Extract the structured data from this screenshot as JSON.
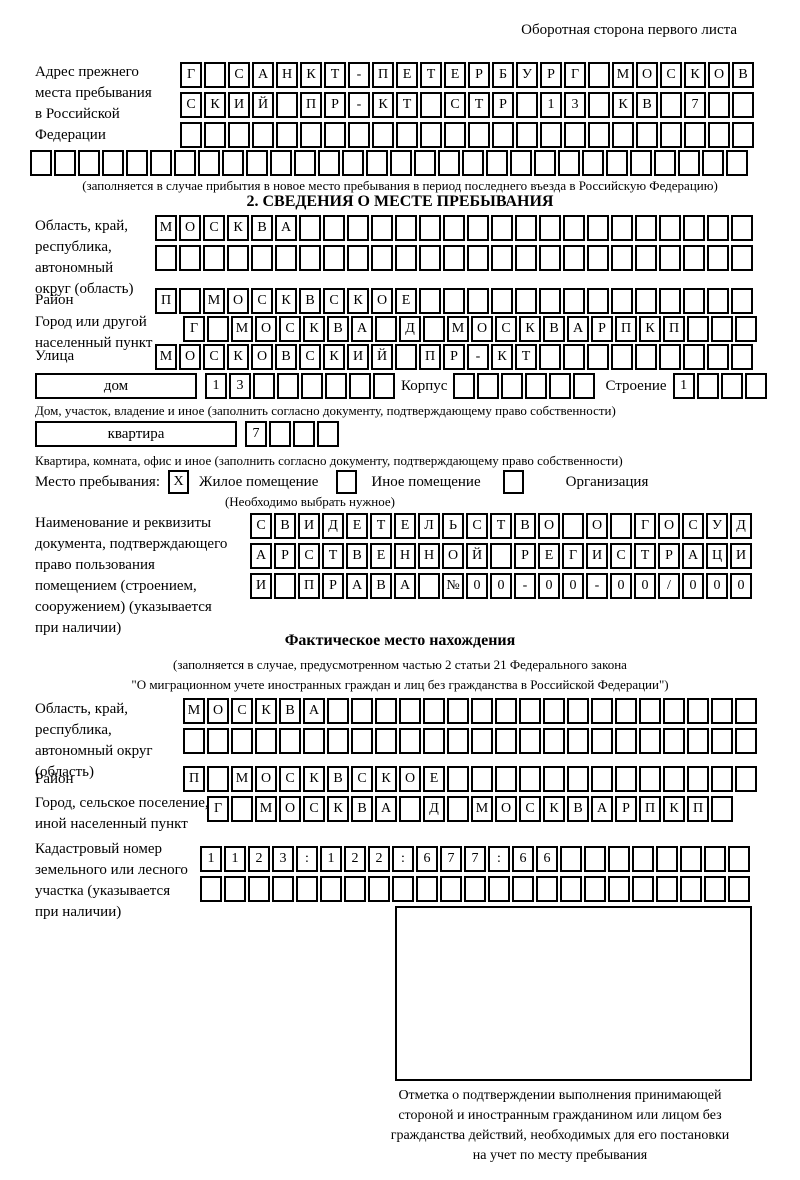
{
  "header": {
    "title": "Оборотная сторона первого листа"
  },
  "prev_address": {
    "label": "Адрес прежнего\nместа пребывания\nв Российской\nФедерации",
    "row1": {
      "text": "Г САНКТ-ПЕТЕРБУРГ МОСКОВ",
      "len": 24
    },
    "row2": {
      "text": "СКИЙ ПР-КТ СТР 13 КВ 7",
      "len": 24
    },
    "row3": {
      "text": "",
      "len": 24
    },
    "row4": {
      "text": "",
      "len": 30
    },
    "note": "(заполняется в случае прибытия в новое место пребывания в период последнего въезда в Российскую Федерацию)"
  },
  "section2": {
    "title": "2. СВЕДЕНИЯ О МЕСТЕ ПРЕБЫВАНИЯ",
    "region": {
      "label": "Область, край,\nреспублика,\nавтономный\nокруг (область)",
      "row1": {
        "text": "МОСКВА",
        "len": 25
      },
      "row2": {
        "text": "",
        "len": 25
      }
    },
    "district": {
      "label": "Район",
      "row": {
        "text": "П МОСКВСКОЕ",
        "len": 25
      }
    },
    "city": {
      "label": "Город или другой\nнаселенный пункт",
      "row": {
        "text": "Г МОСКВА Д МОСКВАРПКП",
        "len": 24
      }
    },
    "street": {
      "label": "Улица",
      "row": {
        "text": "МОСКОВСКИЙ ПР-КТ",
        "len": 25
      }
    },
    "house": {
      "box_label": "дом",
      "cells": {
        "text": "13",
        "len": 8
      },
      "korpus_label": "Корпус",
      "korpus_cells": {
        "text": "",
        "len": 6
      },
      "stroenie_label": "Строение",
      "stroenie_cells": {
        "text": "1",
        "len": 4
      }
    },
    "house_note": "Дом, участок, владение и иное (заполнить согласно документу, подтверждающему право собственности)",
    "apartment": {
      "box_label": "квартира",
      "cells": {
        "text": "7",
        "len": 4
      }
    },
    "apartment_note": "Квартира, комната, офис и иное (заполнить согласно документу, подтверждающему право собственности)",
    "stay_type": {
      "label": "Место пребывания:",
      "option1": "Жилое помещение",
      "option1_checked": "X",
      "option2": "Иное помещение",
      "option2_checked": "",
      "option3": "Организация",
      "option3_checked": "",
      "note": "(Необходимо выбрать нужное)"
    },
    "document": {
      "label": "Наименование и реквизиты\nдокумента, подтверждающего\nправо пользования\nпомещением (строением,\nсооружением) (указывается\nпри наличии)",
      "row1": {
        "text": "СВИДЕТЕЛЬСТВО О ГОСУД",
        "len": 21
      },
      "row2": {
        "text": "АРСТВЕННОЙ РЕГИСТРАЦИ",
        "len": 21
      },
      "row3": {
        "text": "И ПРАВА №00-00-00/000",
        "len": 21
      }
    }
  },
  "actual_location": {
    "title": "Фактическое место нахождения",
    "note1": "(заполняется в случае, предусмотренном частью 2 статьи 21 Федерального закона",
    "note2": "\"О миграционном учете иностранных граждан и лиц без гражданства в Российской Федерации\")",
    "region": {
      "label": "Область, край,\nреспублика,\nавтономный округ\n(область)",
      "row1": {
        "text": "МОСКВА",
        "len": 24
      },
      "row2": {
        "text": "",
        "len": 24
      }
    },
    "district": {
      "label": "Район",
      "row": {
        "text": "П МОСКВСКОЕ",
        "len": 24
      }
    },
    "city": {
      "label": "Город, сельское поселение,\nиной населенный пункт",
      "row": {
        "text": "Г МОСКВА Д МОСКВАРПКП",
        "len": 22
      }
    },
    "cadastral": {
      "label": "Кадастровый номер\nземельного или лесного\nучастка (указывается\nпри наличии)",
      "row1": {
        "text": "1123:122:677:66",
        "len": 23
      },
      "row2": {
        "text": "",
        "len": 23
      }
    },
    "stamp_caption": "Отметка о подтверждении выполнения принимающей\nстороной и иностранным гражданином или лицом без\nгражданства действий, необходимых для его постановки\nна учет по месту пребывания"
  }
}
